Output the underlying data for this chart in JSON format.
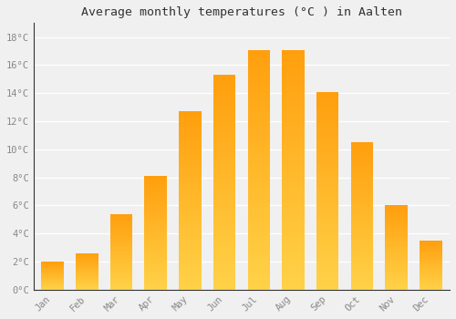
{
  "title": "Average monthly temperatures (°C ) in Aalten",
  "months": [
    "Jan",
    "Feb",
    "Mar",
    "Apr",
    "May",
    "Jun",
    "Jul",
    "Aug",
    "Sep",
    "Oct",
    "Nov",
    "Dec"
  ],
  "values": [
    2.0,
    2.6,
    5.4,
    8.1,
    12.7,
    15.3,
    17.1,
    17.1,
    14.1,
    10.5,
    6.0,
    3.5
  ],
  "bar_color_light": "#FFD04A",
  "bar_color_dark": "#FFA500",
  "background_color": "#f0f0f0",
  "grid_color": "#ffffff",
  "ylim": [
    0,
    19
  ],
  "yticks": [
    0,
    2,
    4,
    6,
    8,
    10,
    12,
    14,
    16,
    18
  ],
  "ytick_labels": [
    "0°C",
    "2°C",
    "4°C",
    "6°C",
    "8°C",
    "10°C",
    "12°C",
    "14°C",
    "16°C",
    "18°C"
  ],
  "title_fontsize": 9.5,
  "tick_fontsize": 7.5,
  "tick_color": "#888888",
  "bar_width": 0.65
}
